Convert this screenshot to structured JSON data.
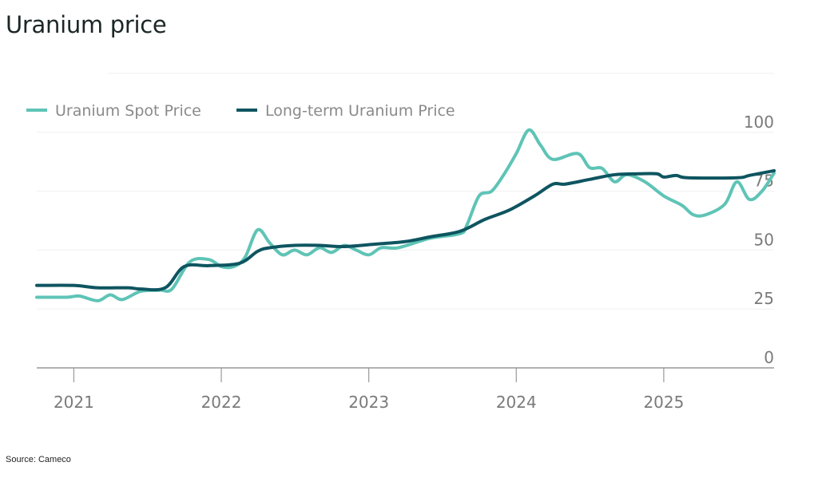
{
  "title": "Uranium price",
  "source": "Source: Cameco",
  "chart_data": {
    "type": "line",
    "title": "Uranium price",
    "xlabel": "",
    "ylabel": "",
    "xlim": [
      "2020-10-01",
      "2025-10-01"
    ],
    "ylim": [
      0,
      125
    ],
    "x_ticks": [
      "2021",
      "2022",
      "2023",
      "2024",
      "2025"
    ],
    "y_ticks": [
      0,
      25,
      50,
      75,
      100
    ],
    "y_gridlines": [
      0,
      25,
      50,
      75,
      100,
      125
    ],
    "grid": true,
    "legend_position": "top-left",
    "series": [
      {
        "name": "Uranium Spot Price",
        "color": "#5ec4b6",
        "points": [
          [
            "2020-10-01",
            30
          ],
          [
            "2020-12-15",
            30
          ],
          [
            "2021-01-15",
            30.5
          ],
          [
            "2021-03-01",
            28.5
          ],
          [
            "2021-04-01",
            31
          ],
          [
            "2021-05-01",
            29
          ],
          [
            "2021-06-15",
            32.5
          ],
          [
            "2021-08-01",
            33
          ],
          [
            "2021-09-01",
            33.5
          ],
          [
            "2021-10-15",
            45
          ],
          [
            "2021-12-01",
            46
          ],
          [
            "2022-01-01",
            43
          ],
          [
            "2022-02-01",
            43
          ],
          [
            "2022-03-01",
            47
          ],
          [
            "2022-04-01",
            58.6
          ],
          [
            "2022-05-01",
            53
          ],
          [
            "2022-06-01",
            48
          ],
          [
            "2022-07-01",
            50
          ],
          [
            "2022-08-01",
            48
          ],
          [
            "2022-09-01",
            51
          ],
          [
            "2022-10-01",
            49
          ],
          [
            "2022-11-01",
            52
          ],
          [
            "2022-12-01",
            50
          ],
          [
            "2023-01-01",
            48
          ],
          [
            "2023-02-01",
            51
          ],
          [
            "2023-03-15",
            51
          ],
          [
            "2023-06-01",
            55
          ],
          [
            "2023-08-15",
            57
          ],
          [
            "2023-09-01",
            60.7
          ],
          [
            "2023-10-01",
            73
          ],
          [
            "2023-11-01",
            75
          ],
          [
            "2023-12-01",
            82
          ],
          [
            "2024-01-01",
            91
          ],
          [
            "2024-02-01",
            101
          ],
          [
            "2024-03-01",
            94.6
          ],
          [
            "2024-04-01",
            88.5
          ],
          [
            "2024-06-01",
            91
          ],
          [
            "2024-07-01",
            85
          ],
          [
            "2024-08-01",
            84.7
          ],
          [
            "2024-09-01",
            79
          ],
          [
            "2024-10-01",
            82
          ],
          [
            "2024-11-15",
            79
          ],
          [
            "2025-01-01",
            73
          ],
          [
            "2025-02-15",
            69
          ],
          [
            "2025-03-15",
            65
          ],
          [
            "2025-04-15",
            65
          ],
          [
            "2025-06-01",
            69.5
          ],
          [
            "2025-07-01",
            79
          ],
          [
            "2025-08-01",
            71.5
          ],
          [
            "2025-09-01",
            75
          ],
          [
            "2025-10-01",
            82.7
          ]
        ]
      },
      {
        "name": "Long-term Uranium Price",
        "color": "#0e5560",
        "points": [
          [
            "2020-10-01",
            35
          ],
          [
            "2021-01-01",
            35
          ],
          [
            "2021-03-01",
            34
          ],
          [
            "2021-05-15",
            34
          ],
          [
            "2021-06-15",
            33.5
          ],
          [
            "2021-08-15",
            34
          ],
          [
            "2021-10-01",
            43
          ],
          [
            "2021-12-01",
            43.4
          ],
          [
            "2022-02-15",
            44.4
          ],
          [
            "2022-04-01",
            49.5
          ],
          [
            "2022-05-01",
            51
          ],
          [
            "2022-07-01",
            52
          ],
          [
            "2022-09-01",
            52
          ],
          [
            "2022-11-01",
            51.5
          ],
          [
            "2023-01-15",
            52.5
          ],
          [
            "2023-04-01",
            53.6
          ],
          [
            "2023-06-01",
            55.6
          ],
          [
            "2023-08-15",
            58
          ],
          [
            "2023-10-15",
            63
          ],
          [
            "2023-12-15",
            67
          ],
          [
            "2024-02-15",
            73
          ],
          [
            "2024-04-01",
            78
          ],
          [
            "2024-05-01",
            78
          ],
          [
            "2024-07-01",
            80
          ],
          [
            "2024-09-01",
            82
          ],
          [
            "2024-11-01",
            82.4
          ],
          [
            "2024-12-15",
            82.4
          ],
          [
            "2025-01-01",
            81
          ],
          [
            "2025-02-01",
            81.7
          ],
          [
            "2025-03-01",
            80.7
          ],
          [
            "2025-07-01",
            80.7
          ],
          [
            "2025-08-01",
            81.7
          ],
          [
            "2025-10-01",
            83.7
          ]
        ]
      }
    ]
  }
}
